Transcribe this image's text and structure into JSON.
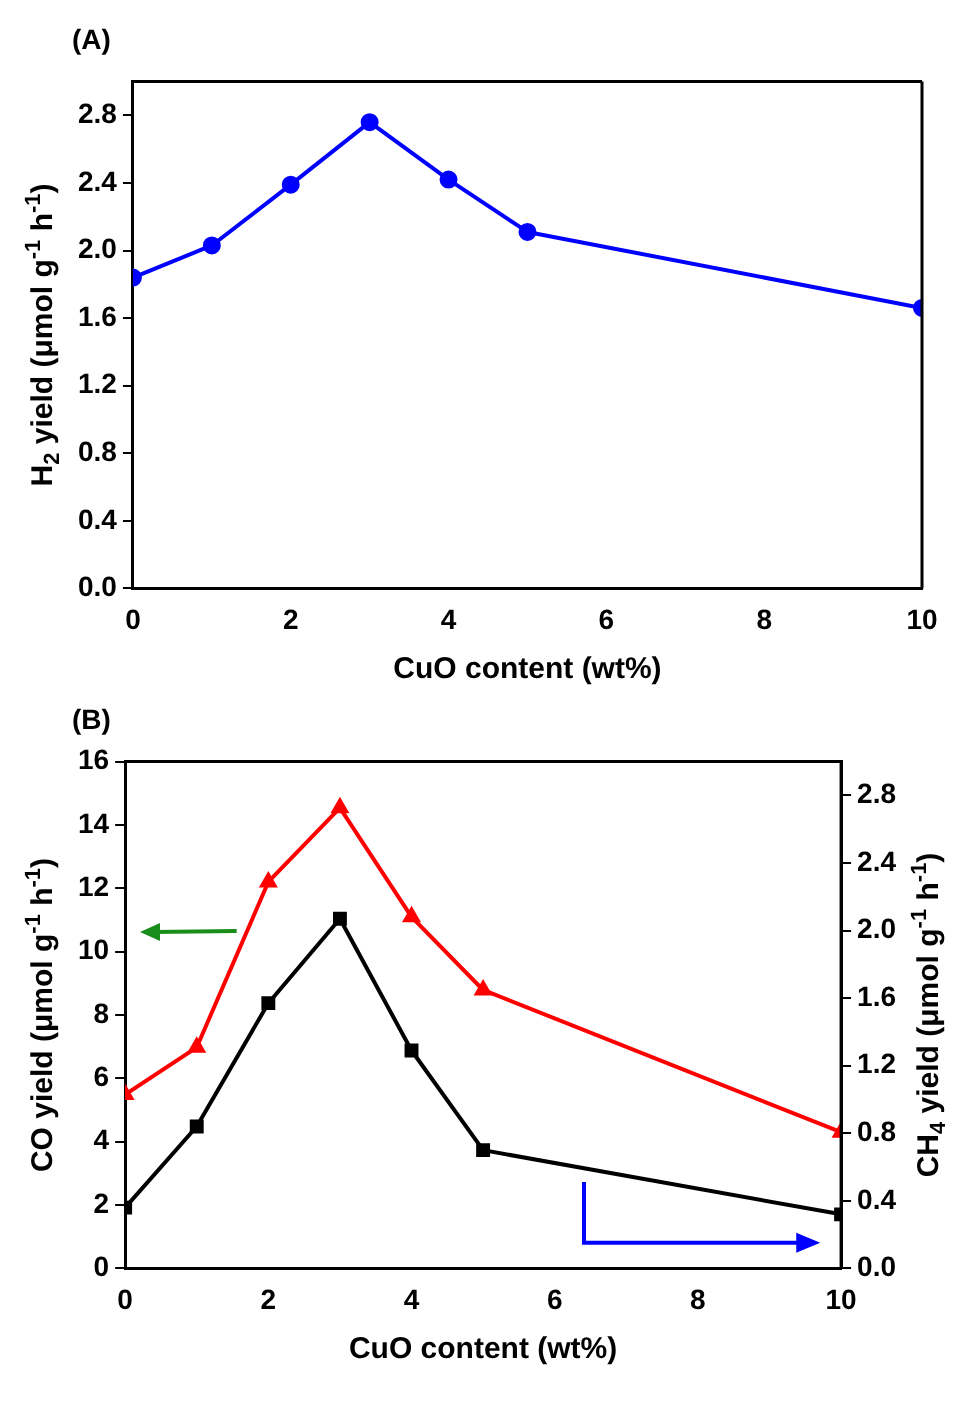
{
  "chart_data": [
    {
      "type": "line",
      "title": "(A)",
      "xlabel": "CuO content (wt%)",
      "ylabel": "H$_{2}$ yield (μmol g$^{-1}$ h$^{-1}$)",
      "x": [
        0,
        1,
        2,
        3,
        4,
        5,
        10
      ],
      "xlim": [
        0,
        10
      ],
      "xticks": [
        0,
        2,
        4,
        6,
        8,
        10
      ],
      "ylim": [
        0,
        3.0
      ],
      "yticks": [
        {
          "value": 0,
          "label": "0.0"
        },
        0.4,
        0.8,
        1.2,
        1.6,
        {
          "value": 2,
          "label": "2.0"
        },
        2.4,
        2.8
      ],
      "series": [
        {
          "color": "#0000ff",
          "marker": "circle",
          "values": [
            1.84,
            2.03,
            2.39,
            2.76,
            2.42,
            2.11,
            1.66
          ]
        }
      ]
    },
    {
      "type": "line",
      "title": "(B)",
      "xlabel": "CuO content (wt%)",
      "ylabel": "CO yield (μmol g$^{-1}$ h$^{-1}$)",
      "y2label": "CH$_{4}$ yield (μmol g$^{-1}$ h$^{-1}$)",
      "x": [
        0,
        1,
        2,
        3,
        4,
        5,
        10
      ],
      "xlim": [
        0,
        10
      ],
      "xticks": [
        0,
        2,
        4,
        6,
        8,
        10
      ],
      "ylim": [
        0,
        16
      ],
      "yticks": [
        0,
        2,
        4,
        6,
        8,
        10,
        12,
        14,
        16
      ],
      "y2lim": [
        0,
        3.0
      ],
      "y2ticks": [
        {
          "value": 0,
          "label": "0.0"
        },
        0.4,
        0.8,
        1.2,
        1.6,
        {
          "value": 2,
          "label": "2.0"
        },
        2.4,
        2.8
      ],
      "series": [
        {
          "color": "#ff0000",
          "marker": "triangle",
          "values": [
            5.49,
            6.98,
            12.2,
            14.54,
            11.1,
            8.79,
            4.3
          ]
        },
        {
          "color": "#000000",
          "marker": "square",
          "axis": "y2",
          "values": [
            0.36,
            0.84,
            1.57,
            2.07,
            1.29,
            0.7,
            0.32
          ]
        }
      ]
    }
  ]
}
